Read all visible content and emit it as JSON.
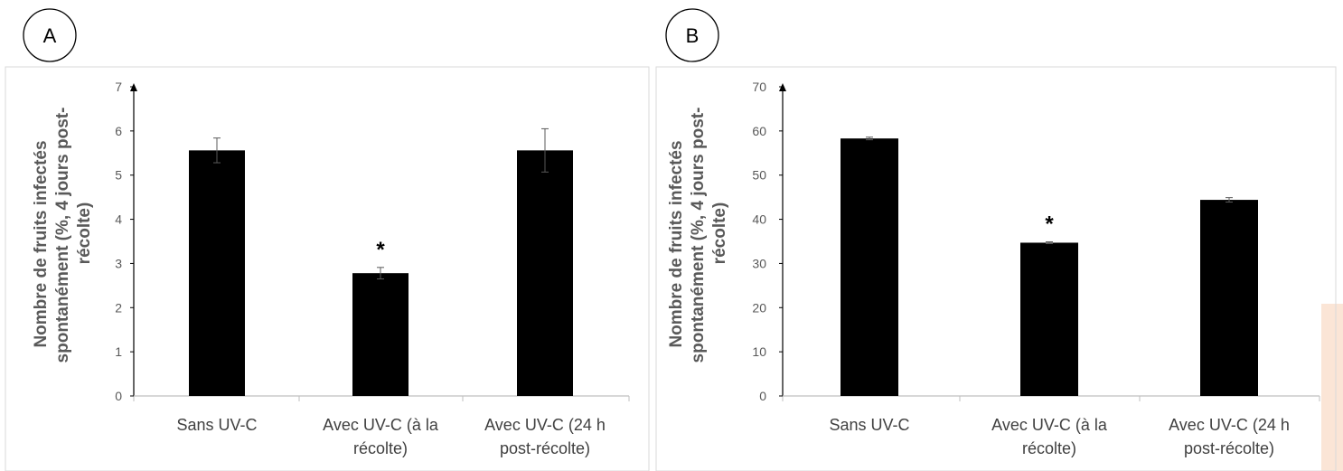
{
  "chart_data": [
    {
      "type": "bar",
      "panel": "A",
      "categories": [
        [
          "Sans UV-C"
        ],
        [
          "Avec UV-C (à la",
          "récolte)"
        ],
        [
          "Avec UV-C (24 h",
          "post-récolte)"
        ]
      ],
      "values": [
        5.56,
        2.78,
        5.56
      ],
      "errors": [
        0.28,
        0.13,
        0.49
      ],
      "significance": [
        "",
        "*",
        ""
      ],
      "ylabel": [
        "Nombre de fruits infectés",
        "spontanément (%, 4 jours post-",
        "récolte)"
      ],
      "ylim": [
        0,
        7
      ],
      "yticks": [
        0,
        1,
        2,
        3,
        4,
        5,
        6,
        7
      ],
      "bar_color": "#000000"
    },
    {
      "type": "bar",
      "panel": "B",
      "categories": [
        [
          "Sans UV-C"
        ],
        [
          "Avec UV-C (à la",
          "récolte)"
        ],
        [
          "Avec UV-C (24 h",
          "post-récolte)"
        ]
      ],
      "values": [
        58.3,
        34.7,
        44.4
      ],
      "errors": [
        0.3,
        0.2,
        0.5
      ],
      "significance": [
        "",
        "*",
        ""
      ],
      "ylabel": [
        "Nombre de fruits infectés",
        "spontanément (%, 4 jours post-",
        "récolte)"
      ],
      "ylim": [
        0,
        70
      ],
      "yticks": [
        0,
        10,
        20,
        30,
        40,
        50,
        60,
        70
      ],
      "bar_color": "#000000"
    }
  ],
  "colors": {
    "bars": "#000000",
    "axis": "#bfbfbf",
    "frame": "#d9d9d9",
    "side_strip": "#fbe5d6"
  }
}
